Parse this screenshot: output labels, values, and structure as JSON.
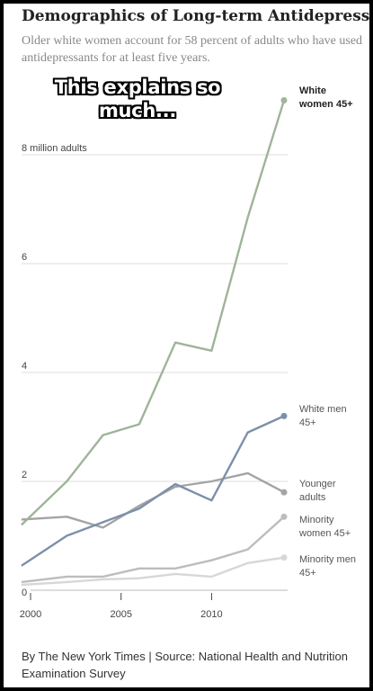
{
  "title": "Demographics of Long-term Antidepressant",
  "subtitle": "Older white women account for 58 percent of adults who have used antidepressants for at least five years.",
  "meme_caption": "This explains so much...",
  "source": "By The New York Times | Source: National Health and Nutrition Examination Survey",
  "chart_data": {
    "type": "line",
    "title": "Demographics of Long-term Antidepressant",
    "subtitle": "Older white women account for 58 percent of adults who have used antidepressants for at least five years.",
    "ylabel": "million adults",
    "y_unit_label": "8 million adults",
    "ylim": [
      0,
      9.2
    ],
    "yticks": [
      0,
      2,
      4,
      6,
      8
    ],
    "ytick_labels": [
      "0",
      "2",
      "4",
      "6",
      "8 million adults"
    ],
    "xlim": [
      2000,
      2014
    ],
    "xticks": [
      2000,
      2005,
      2010
    ],
    "grid": true,
    "x": [
      1999.5,
      2002,
      2004,
      2006,
      2008,
      2010,
      2012,
      2014
    ],
    "series": [
      {
        "name": "White women 45+",
        "color": "#9fb49a",
        "label_lines": [
          "White",
          "women 45+"
        ],
        "label_bold": true,
        "values": [
          1.2,
          2.0,
          2.85,
          3.05,
          4.55,
          4.4,
          6.85,
          9.0
        ]
      },
      {
        "name": "White men 45+",
        "color": "#7c90aa",
        "label_lines": [
          "White men",
          "45+"
        ],
        "label_bold": false,
        "values": [
          0.45,
          1.0,
          1.25,
          1.5,
          1.95,
          1.65,
          2.9,
          3.2
        ]
      },
      {
        "name": "Younger adults",
        "color": "#a4a4a4",
        "label_lines": [
          "Younger",
          "adults"
        ],
        "label_bold": false,
        "values": [
          1.3,
          1.35,
          1.15,
          1.55,
          1.9,
          2.0,
          2.15,
          1.8
        ]
      },
      {
        "name": "Minority women 45+",
        "color": "#bdbdbd",
        "label_lines": [
          "Minority",
          "women 45+"
        ],
        "label_bold": false,
        "values": [
          0.15,
          0.25,
          0.25,
          0.4,
          0.4,
          0.55,
          0.75,
          1.35
        ]
      },
      {
        "name": "Minority men 45+",
        "color": "#d7d7d7",
        "label_lines": [
          "Minority men",
          "45+"
        ],
        "label_bold": false,
        "values": [
          0.1,
          0.15,
          0.2,
          0.22,
          0.3,
          0.25,
          0.5,
          0.6
        ]
      }
    ]
  }
}
